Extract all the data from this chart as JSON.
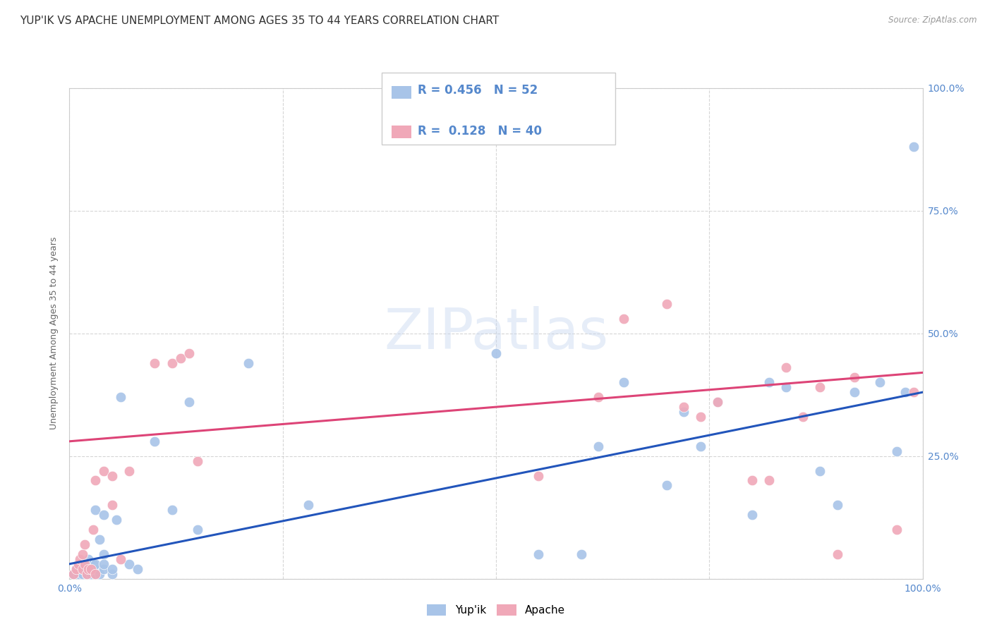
{
  "title": "YUP'IK VS APACHE UNEMPLOYMENT AMONG AGES 35 TO 44 YEARS CORRELATION CHART",
  "source": "Source: ZipAtlas.com",
  "ylabel": "Unemployment Among Ages 35 to 44 years",
  "xlim": [
    0,
    1
  ],
  "ylim": [
    0,
    1
  ],
  "watermark": "ZIPatlas",
  "color_blue": "#a8c4e8",
  "color_pink": "#f0a8b8",
  "line_blue": "#2255bb",
  "line_pink": "#dd4477",
  "tick_color": "#5588cc",
  "yupik_x": [
    0.005,
    0.008,
    0.01,
    0.012,
    0.015,
    0.015,
    0.018,
    0.02,
    0.022,
    0.022,
    0.022,
    0.025,
    0.025,
    0.028,
    0.03,
    0.03,
    0.03,
    0.03,
    0.035,
    0.035,
    0.04,
    0.04,
    0.04,
    0.04,
    0.05,
    0.05,
    0.055,
    0.06,
    0.07,
    0.08,
    0.1,
    0.12,
    0.14,
    0.15,
    0.21,
    0.28,
    0.5,
    0.55,
    0.6,
    0.62,
    0.65,
    0.7,
    0.72,
    0.74,
    0.76,
    0.8,
    0.82,
    0.84,
    0.88,
    0.9,
    0.92,
    0.95,
    0.97,
    0.98,
    0.99
  ],
  "yupik_y": [
    0.01,
    0.02,
    0.01,
    0.02,
    0.01,
    0.02,
    0.03,
    0.01,
    0.02,
    0.03,
    0.04,
    0.01,
    0.02,
    0.03,
    0.01,
    0.02,
    0.03,
    0.14,
    0.01,
    0.08,
    0.02,
    0.03,
    0.05,
    0.13,
    0.01,
    0.02,
    0.12,
    0.37,
    0.03,
    0.02,
    0.28,
    0.14,
    0.36,
    0.1,
    0.44,
    0.15,
    0.46,
    0.05,
    0.05,
    0.27,
    0.4,
    0.19,
    0.34,
    0.27,
    0.36,
    0.13,
    0.4,
    0.39,
    0.22,
    0.15,
    0.38,
    0.4,
    0.26,
    0.38,
    0.88
  ],
  "apache_x": [
    0.005,
    0.008,
    0.01,
    0.012,
    0.015,
    0.015,
    0.018,
    0.018,
    0.02,
    0.022,
    0.025,
    0.028,
    0.03,
    0.03,
    0.04,
    0.05,
    0.05,
    0.06,
    0.07,
    0.1,
    0.12,
    0.13,
    0.14,
    0.15,
    0.55,
    0.62,
    0.65,
    0.7,
    0.72,
    0.74,
    0.76,
    0.8,
    0.82,
    0.84,
    0.86,
    0.88,
    0.9,
    0.92,
    0.97,
    0.99
  ],
  "apache_y": [
    0.01,
    0.02,
    0.03,
    0.04,
    0.02,
    0.05,
    0.03,
    0.07,
    0.01,
    0.02,
    0.02,
    0.1,
    0.01,
    0.2,
    0.22,
    0.15,
    0.21,
    0.04,
    0.22,
    0.44,
    0.44,
    0.45,
    0.46,
    0.24,
    0.21,
    0.37,
    0.53,
    0.56,
    0.35,
    0.33,
    0.36,
    0.2,
    0.2,
    0.43,
    0.33,
    0.39,
    0.05,
    0.41,
    0.1,
    0.38
  ],
  "yupik_line_x": [
    0.0,
    1.0
  ],
  "yupik_line_y": [
    0.03,
    0.38
  ],
  "apache_line_x": [
    0.0,
    1.0
  ],
  "apache_line_y": [
    0.28,
    0.42
  ],
  "title_fontsize": 11,
  "axis_fontsize": 9,
  "tick_fontsize": 10,
  "bg_color": "#ffffff",
  "grid_color": "#cccccc"
}
